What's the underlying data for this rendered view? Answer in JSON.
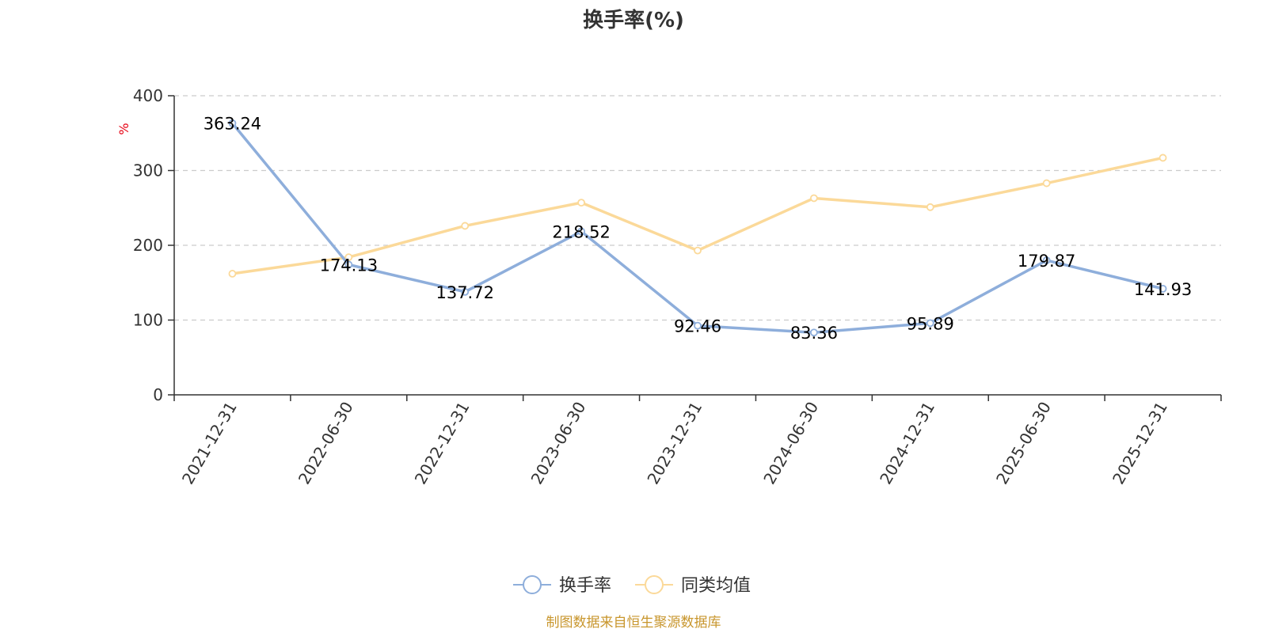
{
  "chart_data": {
    "type": "line",
    "title": "换手率(%)",
    "ylabel": "%",
    "ylim": [
      0,
      400
    ],
    "yticks": [
      0,
      100,
      200,
      300,
      400
    ],
    "categories": [
      "2021-12-31",
      "2022-06-30",
      "2022-12-31",
      "2023-06-30",
      "2023-12-31",
      "2024-06-30",
      "2024-12-31",
      "2025-06-30",
      "2025-12-31"
    ],
    "series": [
      {
        "name": "换手率",
        "color": "#8eaedb",
        "values": [
          363.24,
          174.13,
          137.72,
          218.52,
          92.46,
          83.36,
          95.89,
          179.87,
          141.93
        ],
        "labels": [
          "363.24",
          "174.13",
          "137.72",
          "218.52",
          "92.46",
          "83.36",
          "95.89",
          "179.87",
          "141.93"
        ]
      },
      {
        "name": "同类均值",
        "color": "#fbd999",
        "values": [
          162,
          184,
          226,
          257,
          193,
          263,
          251,
          283,
          317
        ]
      }
    ],
    "grid": true,
    "legend_position": "bottom-center"
  },
  "source": "制图数据来自恒生聚源数据库"
}
